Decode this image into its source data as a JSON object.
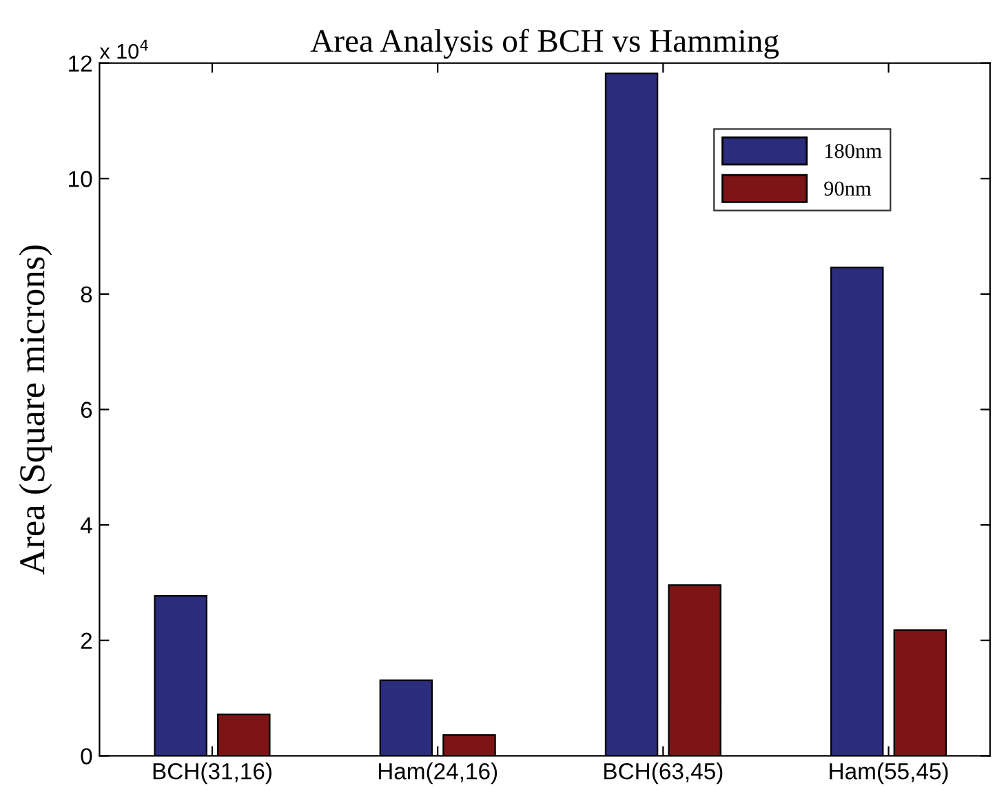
{
  "chart_data": {
    "type": "bar",
    "title": "Area Analysis of BCH vs Hamming",
    "ylabel": "Area (Square microns)",
    "categories": [
      "BCH(31,16)",
      "Ham(24,16)",
      "BCH(63,45)",
      "Ham(55,45)"
    ],
    "series": [
      {
        "name": "180nm",
        "color": "#2b2c7c",
        "values": [
          2.77,
          1.31,
          11.82,
          8.46
        ]
      },
      {
        "name": "90nm",
        "color": "#7d1416",
        "values": [
          0.72,
          0.36,
          2.96,
          2.18
        ]
      }
    ],
    "ylim": [
      0,
      12
    ],
    "yticks": [
      0,
      2,
      4,
      6,
      8,
      10,
      12
    ],
    "annotations": [
      "x 10$^{4}$"
    ],
    "legend": "top right",
    "grid": false
  }
}
